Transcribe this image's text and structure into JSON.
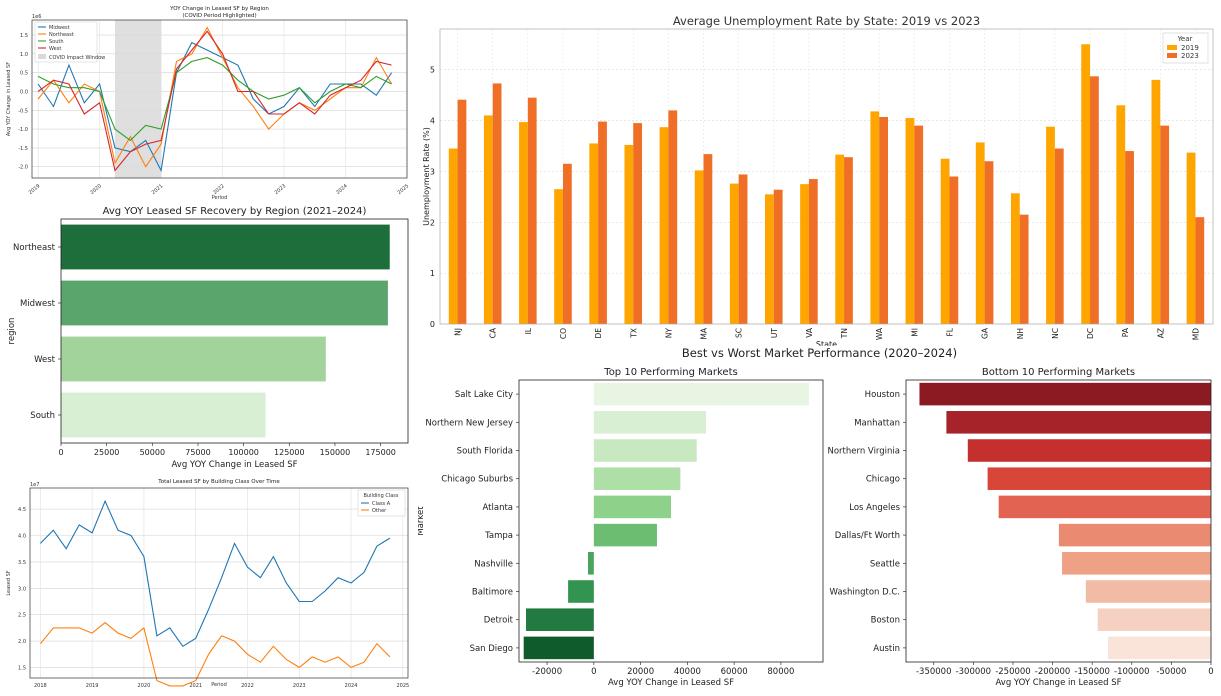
{
  "figure": {
    "super_title": "Best vs Worst Market Performance (2020–2024)"
  },
  "chart_data": [
    {
      "id": "yoy",
      "type": "line",
      "title": "YOY Change in Leased SF by Region",
      "subtitle": "(COVID Period Highlighted)",
      "xlabel": "Period",
      "ylabel": "Avg YOY Change in Leased SF",
      "y_multiplier_label": "1e6",
      "xlim": [
        2018.9,
        2025.0
      ],
      "ylim": [
        -2.3,
        1.9
      ],
      "x_ticks": [
        2019,
        2020,
        2021,
        2022,
        2023,
        2024,
        2025
      ],
      "y_ticks": [
        -2.0,
        -1.5,
        -1.0,
        -0.5,
        0.0,
        0.5,
        1.0,
        1.5
      ],
      "legend_position": "upper-left",
      "shaded_region": {
        "label": "COVID Impact Window",
        "x0": 2020.25,
        "x1": 2021.0,
        "color": "#d9d9d9"
      },
      "x": [
        2019.0,
        2019.25,
        2019.5,
        2019.75,
        2020.0,
        2020.25,
        2020.5,
        2020.75,
        2021.0,
        2021.25,
        2021.5,
        2021.75,
        2022.0,
        2022.25,
        2022.5,
        2022.75,
        2023.0,
        2023.25,
        2023.5,
        2023.75,
        2024.0,
        2024.25,
        2024.5,
        2024.75
      ],
      "series": [
        {
          "name": "Midwest",
          "color": "#1f77b4",
          "values": [
            0.2,
            -0.4,
            0.7,
            -0.3,
            0.2,
            -1.5,
            -1.6,
            -1.3,
            -2.1,
            0.5,
            1.3,
            1.1,
            0.9,
            0.7,
            -0.2,
            -0.6,
            -0.4,
            0.1,
            -0.4,
            0.2,
            0.2,
            0.2,
            -0.1,
            0.5
          ]
        },
        {
          "name": "Northeast",
          "color": "#ff7f0e",
          "values": [
            -0.2,
            0.3,
            -0.3,
            0.2,
            0.0,
            -1.9,
            -1.2,
            -2.0,
            -1.4,
            0.8,
            1.0,
            1.7,
            0.9,
            0.1,
            -0.4,
            -1.0,
            -0.6,
            -0.3,
            -0.5,
            -0.2,
            0.1,
            0.1,
            0.9,
            0.2
          ]
        },
        {
          "name": "South",
          "color": "#2ca02c",
          "values": [
            0.4,
            0.2,
            0.1,
            0.1,
            0.0,
            -1.0,
            -1.3,
            -0.9,
            -1.0,
            0.5,
            0.8,
            0.9,
            0.7,
            0.3,
            0.0,
            -0.2,
            -0.1,
            0.1,
            -0.3,
            0.0,
            0.2,
            0.1,
            0.4,
            0.2
          ]
        },
        {
          "name": "West",
          "color": "#d62728",
          "values": [
            0.0,
            0.3,
            0.2,
            -0.6,
            -0.3,
            -2.1,
            -1.6,
            -1.4,
            -1.3,
            0.6,
            1.1,
            1.6,
            1.0,
            0.0,
            0.0,
            -0.6,
            -0.6,
            -0.3,
            -0.6,
            -0.1,
            0.1,
            0.3,
            0.8,
            0.7
          ]
        }
      ]
    },
    {
      "id": "recovery",
      "type": "bar",
      "orientation": "horizontal",
      "title": "Avg YOY Leased SF Recovery by Region (2021–2024)",
      "xlabel": "Avg YOY Change in Leased SF",
      "ylabel": "region",
      "xlim": [
        0,
        190000
      ],
      "x_ticks": [
        0,
        25000,
        50000,
        75000,
        100000,
        125000,
        150000,
        175000
      ],
      "categories": [
        "Northeast",
        "Midwest",
        "West",
        "South"
      ],
      "values": [
        180000,
        179000,
        145000,
        112000
      ],
      "colors": [
        "#1d6e3a",
        "#5aa56b",
        "#a1d39b",
        "#d9efd3"
      ]
    },
    {
      "id": "class",
      "type": "line",
      "title": "Total Leased SF by Building Class Over Time",
      "xlabel": "Period",
      "ylabel": "Leased SF",
      "y_multiplier_label": "1e7",
      "xlim": [
        2017.8,
        2025.1
      ],
      "ylim": [
        1.3,
        4.9
      ],
      "x_ticks": [
        2018,
        2019,
        2020,
        2021,
        2022,
        2023,
        2024,
        2025
      ],
      "y_ticks": [
        1.5,
        2.0,
        2.5,
        3.0,
        3.5,
        4.0,
        4.5
      ],
      "y_tick_labels": [
        "1.5",
        "2.0",
        "2.5",
        "3.0",
        "3.5",
        "4.0",
        "4.5"
      ],
      "legend_title": "Building Class",
      "legend_position": "upper-right",
      "x": [
        2018.0,
        2018.25,
        2018.5,
        2018.75,
        2019.0,
        2019.25,
        2019.5,
        2019.75,
        2020.0,
        2020.25,
        2020.5,
        2020.75,
        2021.0,
        2021.25,
        2021.5,
        2021.75,
        2022.0,
        2022.25,
        2022.5,
        2022.75,
        2023.0,
        2023.25,
        2023.5,
        2023.75,
        2024.0,
        2024.25,
        2024.5,
        2024.75
      ],
      "series": [
        {
          "name": "Class A",
          "color": "#1f77b4",
          "values": [
            3.85,
            4.1,
            3.75,
            4.2,
            4.05,
            4.65,
            4.1,
            4.0,
            3.6,
            2.1,
            2.25,
            1.9,
            2.05,
            2.6,
            3.2,
            3.85,
            3.4,
            3.2,
            3.6,
            3.1,
            2.75,
            2.75,
            2.95,
            3.2,
            3.1,
            3.3,
            3.8,
            3.95
          ]
        },
        {
          "name": "Other",
          "color": "#ff7f0e",
          "values": [
            1.95,
            2.25,
            2.25,
            2.25,
            2.15,
            2.35,
            2.15,
            2.05,
            2.25,
            1.25,
            1.15,
            1.15,
            1.25,
            1.75,
            2.1,
            2.0,
            1.75,
            1.6,
            1.9,
            1.65,
            1.5,
            1.7,
            1.6,
            1.7,
            1.5,
            1.6,
            1.95,
            1.7
          ]
        }
      ]
    },
    {
      "id": "unemployment",
      "type": "bar",
      "title": "Average Unemployment Rate by State: 2019 vs 2023",
      "xlabel": "State",
      "ylabel": "Unemployment Rate (%)",
      "ylim": [
        0,
        5.8
      ],
      "y_ticks": [
        0,
        1,
        2,
        3,
        4,
        5
      ],
      "legend_title": "Year",
      "legend_position": "upper-right",
      "categories": [
        "NJ",
        "CA",
        "IL",
        "CO",
        "DE",
        "TX",
        "NY",
        "MA",
        "SC",
        "UT",
        "VA",
        "TN",
        "WA",
        "MI",
        "FL",
        "GA",
        "NH",
        "NC",
        "DC",
        "PA",
        "AZ",
        "MD"
      ],
      "series": [
        {
          "name": "2019",
          "color": "#ffa500",
          "values": [
            3.45,
            4.1,
            3.97,
            2.65,
            3.55,
            3.52,
            3.87,
            3.02,
            2.76,
            2.55,
            2.75,
            3.33,
            4.18,
            4.05,
            3.25,
            3.57,
            2.57,
            3.88,
            5.5,
            4.3,
            4.8,
            3.37
          ]
        },
        {
          "name": "2023",
          "color": "#ef6f27",
          "values": [
            4.41,
            4.73,
            4.45,
            3.15,
            3.98,
            3.95,
            4.2,
            3.34,
            2.94,
            2.64,
            2.85,
            3.28,
            4.07,
            3.9,
            2.9,
            3.2,
            2.15,
            3.45,
            4.87,
            3.4,
            3.9,
            2.1
          ]
        }
      ]
    },
    {
      "id": "top10",
      "type": "bar",
      "orientation": "horizontal",
      "title": "Top 10 Performing Markets",
      "xlabel": "Avg YOY Change in Leased SF",
      "ylabel": "Market",
      "xlim": [
        -32000,
        98000
      ],
      "x_ticks": [
        -20000,
        0,
        20000,
        40000,
        60000,
        80000
      ],
      "categories": [
        "Salt Lake City",
        "Northern New Jersey",
        "South Florida",
        "Chicago Suburbs",
        "Atlanta",
        "Tampa",
        "Nashville",
        "Baltimore",
        "Detroit",
        "San Diego"
      ],
      "values": [
        92000,
        48000,
        44000,
        37000,
        33000,
        27000,
        -2500,
        -11000,
        -29000,
        -30000
      ],
      "colors": [
        "#e8f5e2",
        "#d9efd3",
        "#c7e8c0",
        "#addfa6",
        "#8ed18a",
        "#6cbd72",
        "#4aa45d",
        "#339350",
        "#237a40",
        "#0f5b2c"
      ]
    },
    {
      "id": "bottom10",
      "type": "bar",
      "orientation": "horizontal",
      "title": "Bottom 10 Performing Markets",
      "xlabel": "Avg YOY Change in Leased SF",
      "xlim": [
        -385000,
        0
      ],
      "x_ticks": [
        -350000,
        -300000,
        -250000,
        -200000,
        -150000,
        -100000,
        -50000,
        0
      ],
      "categories": [
        "Houston",
        "Manhattan",
        "Northern Virginia",
        "Chicago",
        "Los Angeles",
        "Dallas/Ft Worth",
        "Seattle",
        "Washington D.C.",
        "Boston",
        "Austin"
      ],
      "values": [
        -368000,
        -334000,
        -307000,
        -282000,
        -268000,
        -192000,
        -188000,
        -158000,
        -143000,
        -130000
      ],
      "colors": [
        "#8b1a22",
        "#a7232a",
        "#c3302e",
        "#d8463a",
        "#e26352",
        "#ea8b71",
        "#efa186",
        "#f2bba5",
        "#f6d0c1",
        "#fae4da"
      ]
    }
  ]
}
